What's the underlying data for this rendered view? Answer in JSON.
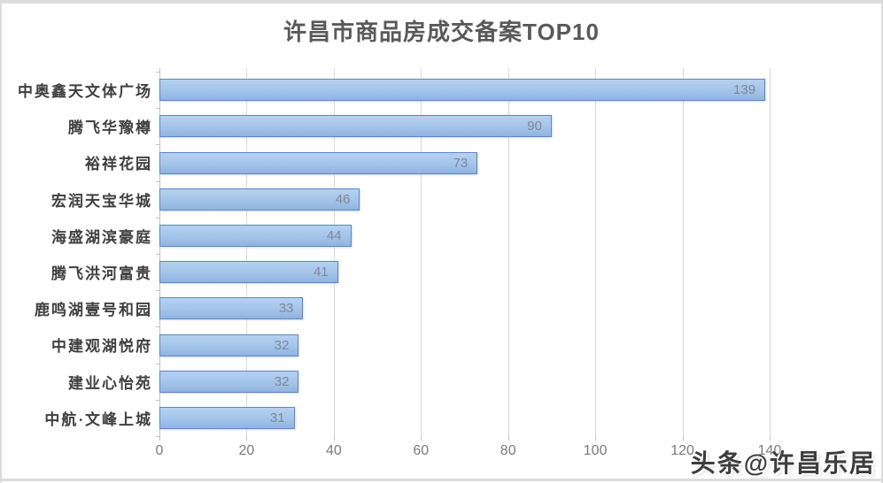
{
  "title": "许昌市商品房成交备案TOP10",
  "watermark": {
    "text": "头条@许昌乐居"
  },
  "chart_data": {
    "type": "bar",
    "orientation": "horizontal",
    "title": "许昌市商品房成交备案TOP10",
    "categories": [
      "中奥鑫天文体广场",
      "腾飞华豫樽",
      "裕祥花园",
      "宏润天宝华城",
      "海盛湖滨豪庭",
      "腾飞洪河富贵",
      "鹿鸣湖壹号和园",
      "中建观湖悦府",
      "建业心怡苑",
      "中航·文峰上城"
    ],
    "values": [
      139,
      90,
      73,
      46,
      44,
      41,
      33,
      32,
      32,
      31
    ],
    "xlabel": "",
    "ylabel": "",
    "xlim": [
      0,
      140
    ],
    "xticks": [
      0,
      20,
      40,
      60,
      80,
      100,
      120,
      140
    ],
    "grid": "vertical",
    "legend": "none",
    "value_labels": "inside-end"
  },
  "colors": {
    "background": "#ffffff",
    "frame": "#dcdcdc",
    "title_text": "#595959",
    "category_text": "#3f3f3f",
    "value_text": "#7e8896",
    "tick_text": "#7b7b7b",
    "gridline": "#d9d9d9",
    "axis_line": "#c3c3c3",
    "bar_fill_top": "#b7d1f0",
    "bar_fill_mid": "#a3c4ea",
    "bar_fill_bottom": "#8fb4e0",
    "bar_border": "#5d87c5",
    "watermark_text": "#3d3d3d"
  }
}
